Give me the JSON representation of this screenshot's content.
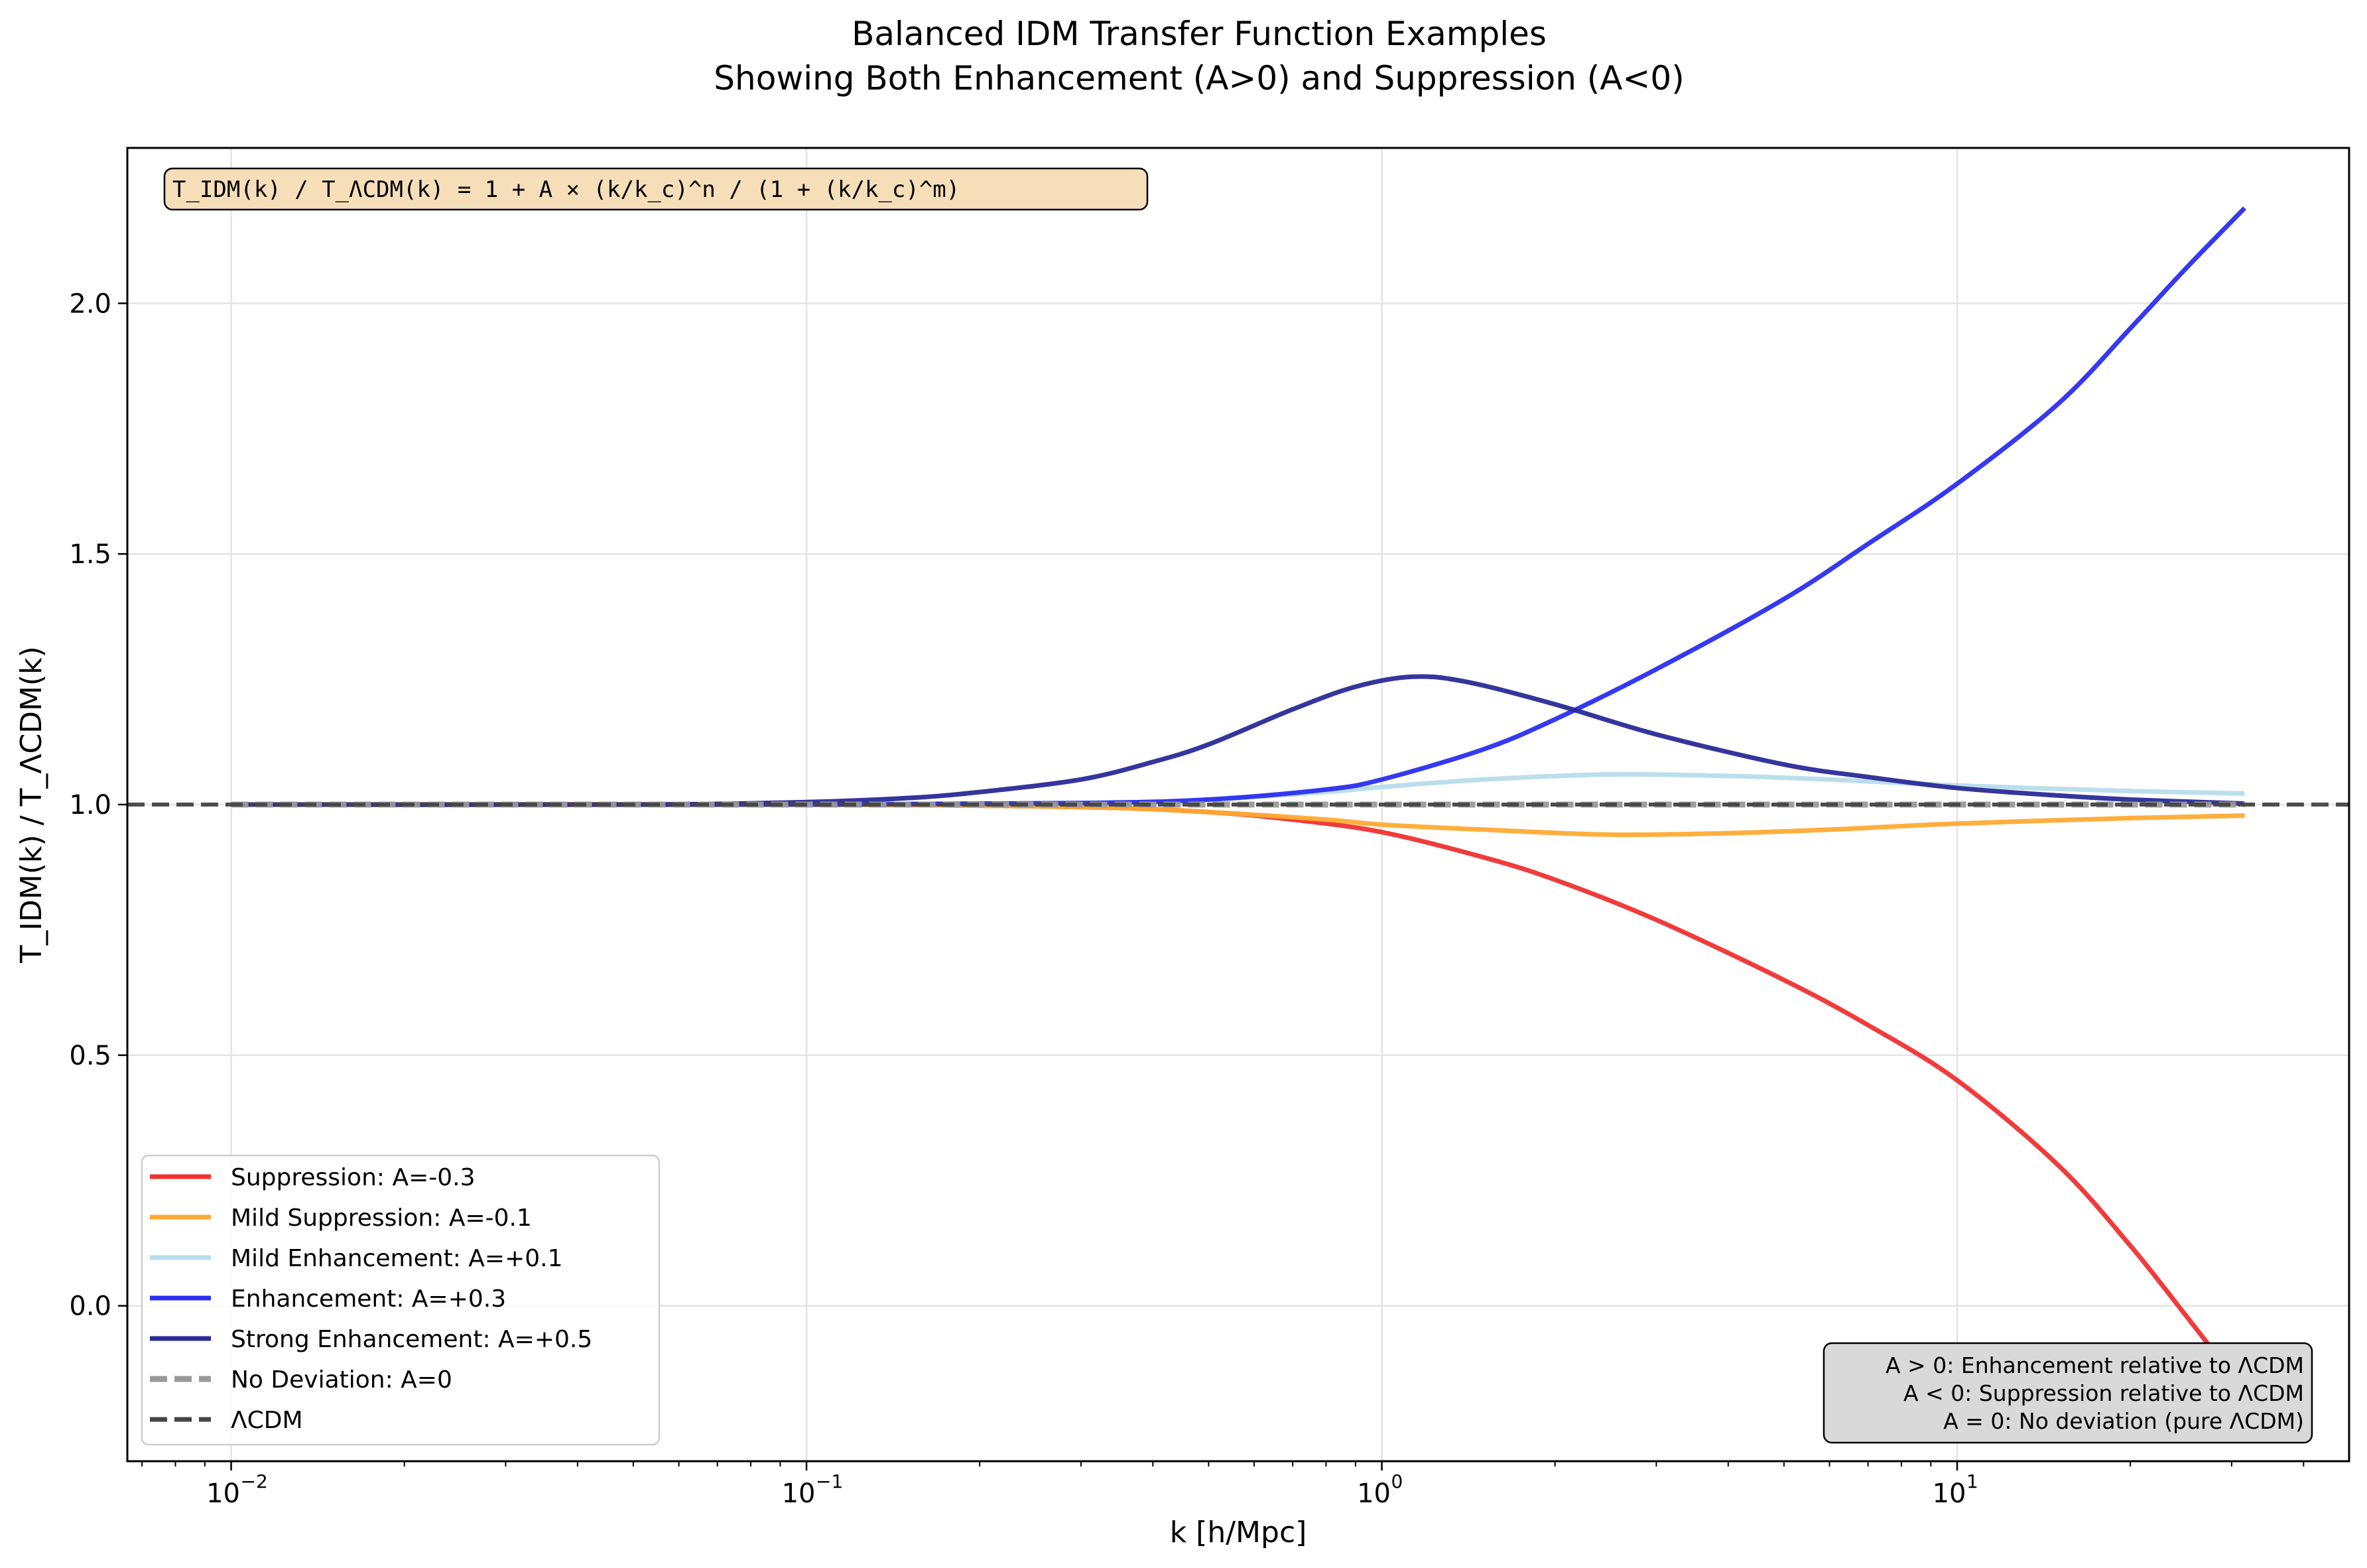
{
  "chart_data": {
    "type": "line",
    "title": "Balanced IDM Transfer Function Examples",
    "subtitle": "Showing Both Enhancement (A>0) and Suppression (A<0)",
    "xlabel": "k [h/Mpc]",
    "ylabel": "T_IDM(k) / T_ΛCDM(k)",
    "xscale": "log",
    "xlim": [
      0.0066,
      48
    ],
    "ylim": [
      -0.31,
      2.31
    ],
    "x_ticks": [
      {
        "value": 0.01,
        "base": "10",
        "exp": "−2"
      },
      {
        "value": 0.1,
        "base": "10",
        "exp": "−1"
      },
      {
        "value": 1,
        "base": "10",
        "exp": "0"
      },
      {
        "value": 10,
        "base": "10",
        "exp": "1"
      }
    ],
    "y_ticks": [
      {
        "value": 0.0,
        "label": "0.0"
      },
      {
        "value": 0.5,
        "label": "0.5"
      },
      {
        "value": 1.0,
        "label": "1.0"
      },
      {
        "value": 1.5,
        "label": "1.5"
      },
      {
        "value": 2.0,
        "label": "2.0"
      }
    ],
    "grid": true,
    "legend_position": "lower-left",
    "formula_box": "T_IDM(k) / T_ΛCDM(k) = 1 + A × (k/k_c)^n / (1 + (k/k_c)^m)",
    "info_box": [
      "A > 0: Enhancement relative to ΛCDM",
      "A < 0: Suppression relative to ΛCDM",
      "A = 0: No deviation (pure ΛCDM)"
    ],
    "series": [
      {
        "name": "Suppression: A=-0.3",
        "color": "#f03030",
        "dash": "solid",
        "points": [
          [
            0.01,
            1.0
          ],
          [
            0.1,
            1.0
          ],
          [
            0.3,
            0.995
          ],
          [
            0.5,
            0.985
          ],
          [
            0.7,
            0.97
          ],
          [
            1.0,
            0.945
          ],
          [
            1.5,
            0.895
          ],
          [
            2.0,
            0.85
          ],
          [
            3.0,
            0.77
          ],
          [
            5.0,
            0.65
          ],
          [
            7.0,
            0.56
          ],
          [
            10.0,
            0.45
          ],
          [
            15.0,
            0.28
          ],
          [
            20.0,
            0.12
          ],
          [
            25.0,
            -0.02
          ],
          [
            31.6,
            -0.17
          ]
        ]
      },
      {
        "name": "Mild Suppression: A=-0.1",
        "color": "#ffaa33",
        "dash": "solid",
        "points": [
          [
            0.01,
            1.0
          ],
          [
            0.1,
            1.0
          ],
          [
            0.3,
            0.995
          ],
          [
            0.5,
            0.985
          ],
          [
            0.8,
            0.97
          ],
          [
            1.0,
            0.96
          ],
          [
            1.5,
            0.95
          ],
          [
            2.5,
            0.94
          ],
          [
            4.0,
            0.943
          ],
          [
            6.0,
            0.95
          ],
          [
            10.0,
            0.962
          ],
          [
            20.0,
            0.973
          ],
          [
            31.6,
            0.978
          ]
        ]
      },
      {
        "name": "Mild Enhancement: A=+0.1",
        "color": "#b8dceb",
        "dash": "solid",
        "points": [
          [
            0.01,
            1.0
          ],
          [
            0.1,
            1.0
          ],
          [
            0.3,
            1.003
          ],
          [
            0.5,
            1.01
          ],
          [
            0.8,
            1.025
          ],
          [
            1.0,
            1.035
          ],
          [
            1.5,
            1.05
          ],
          [
            2.5,
            1.06
          ],
          [
            4.0,
            1.057
          ],
          [
            6.0,
            1.05
          ],
          [
            10.0,
            1.038
          ],
          [
            20.0,
            1.027
          ],
          [
            31.6,
            1.022
          ]
        ]
      },
      {
        "name": "Enhancement: A=+0.3",
        "color": "#2a2ef0",
        "dash": "solid",
        "points": [
          [
            0.01,
            1.0
          ],
          [
            0.1,
            1.0
          ],
          [
            0.3,
            1.003
          ],
          [
            0.5,
            1.01
          ],
          [
            0.8,
            1.03
          ],
          [
            1.0,
            1.05
          ],
          [
            1.5,
            1.11
          ],
          [
            2.0,
            1.17
          ],
          [
            3.0,
            1.27
          ],
          [
            5.0,
            1.41
          ],
          [
            7.0,
            1.52
          ],
          [
            10.0,
            1.64
          ],
          [
            15.0,
            1.8
          ],
          [
            20.0,
            1.95
          ],
          [
            25.0,
            2.07
          ],
          [
            31.6,
            2.19
          ]
        ]
      },
      {
        "name": "Strong Enhancement: A=+0.5",
        "color": "#2a2a98",
        "dash": "solid",
        "points": [
          [
            0.01,
            1.0
          ],
          [
            0.05,
            1.0
          ],
          [
            0.1,
            1.005
          ],
          [
            0.15,
            1.013
          ],
          [
            0.2,
            1.025
          ],
          [
            0.3,
            1.05
          ],
          [
            0.4,
            1.085
          ],
          [
            0.5,
            1.12
          ],
          [
            0.7,
            1.19
          ],
          [
            0.9,
            1.235
          ],
          [
            1.13,
            1.255
          ],
          [
            1.4,
            1.245
          ],
          [
            2.0,
            1.2
          ],
          [
            3.0,
            1.14
          ],
          [
            5.0,
            1.08
          ],
          [
            7.0,
            1.055
          ],
          [
            10.0,
            1.033
          ],
          [
            15.0,
            1.018
          ],
          [
            20.0,
            1.01
          ],
          [
            31.6,
            1.002
          ]
        ]
      },
      {
        "name": "No Deviation: A=0",
        "color": "#999999",
        "dash": "dashed-wide",
        "points": [
          [
            0.01,
            1.0
          ],
          [
            31.6,
            1.0
          ]
        ]
      },
      {
        "name": "ΛCDM",
        "color": "#444444",
        "dash": "dashed",
        "points": [
          [
            0.0066,
            1.0
          ],
          [
            48,
            1.0
          ]
        ]
      }
    ]
  }
}
